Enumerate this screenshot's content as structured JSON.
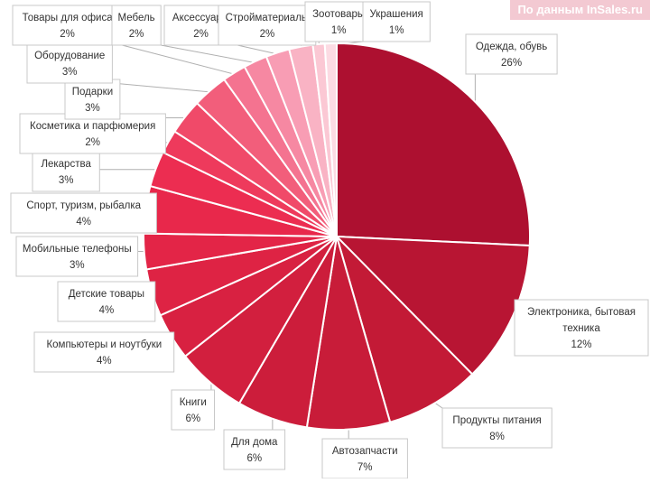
{
  "source_note": "По данным InSales.ru",
  "chart_data": {
    "type": "pie",
    "start_angle_deg": 0,
    "direction": "clockwise",
    "slices": [
      {
        "label": [
          "Одежда, обувь"
        ],
        "value": 26,
        "value_label": "26%",
        "color": "#ad1030"
      },
      {
        "label": [
          "Электроника, бытовая",
          "техника"
        ],
        "value": 12,
        "value_label": "12%",
        "color": "#b81533"
      },
      {
        "label": [
          "Продукты питания"
        ],
        "value": 8,
        "value_label": "8%",
        "color": "#c31a36"
      },
      {
        "label": [
          "Автозапчасти"
        ],
        "value": 7,
        "value_label": "7%",
        "color": "#c81c39"
      },
      {
        "label": [
          "Для дома"
        ],
        "value": 6,
        "value_label": "6%",
        "color": "#cc1d3b"
      },
      {
        "label": [
          "Книги"
        ],
        "value": 6,
        "value_label": "6%",
        "color": "#d21f3e"
      },
      {
        "label": [
          "Компьютеры и ноутбуки"
        ],
        "value": 4,
        "value_label": "4%",
        "color": "#d82141"
      },
      {
        "label": [
          "Детские товары"
        ],
        "value": 4,
        "value_label": "4%",
        "color": "#de2344"
      },
      {
        "label": [
          "Мобильные телефоны"
        ],
        "value": 3,
        "value_label": "3%",
        "color": "#e32547"
      },
      {
        "label": [
          "Спорт, туризм, рыбалка"
        ],
        "value": 4,
        "value_label": "4%",
        "color": "#e8284b"
      },
      {
        "label": [
          "Лекарства"
        ],
        "value": 3,
        "value_label": "3%",
        "color": "#ec2d51"
      },
      {
        "label": [
          "Косметика и парфюмерия"
        ],
        "value": 2,
        "value_label": "2%",
        "color": "#ee3a5c"
      },
      {
        "label": [
          "Подарки"
        ],
        "value": 3,
        "value_label": "3%",
        "color": "#f04a69"
      },
      {
        "label": [
          "Оборудование"
        ],
        "value": 3,
        "value_label": "3%",
        "color": "#f25e7b"
      },
      {
        "label": [
          "Товары для офиса"
        ],
        "value": 2,
        "value_label": "2%",
        "color": "#f47390"
      },
      {
        "label": [
          "Мебель"
        ],
        "value": 2,
        "value_label": "2%",
        "color": "#f688a2"
      },
      {
        "label": [
          "Аксессуары"
        ],
        "value": 2,
        "value_label": "2%",
        "color": "#f89db4"
      },
      {
        "label": [
          "Стройматериалы"
        ],
        "value": 2,
        "value_label": "2%",
        "color": "#f9b3c4"
      },
      {
        "label": [
          "Зоотовары"
        ],
        "value": 1,
        "value_label": "1%",
        "color": "#fbc8d4"
      },
      {
        "label": [
          "Украшения"
        ],
        "value": 1,
        "value_label": "1%",
        "color": "#fcdbe3"
      }
    ]
  }
}
